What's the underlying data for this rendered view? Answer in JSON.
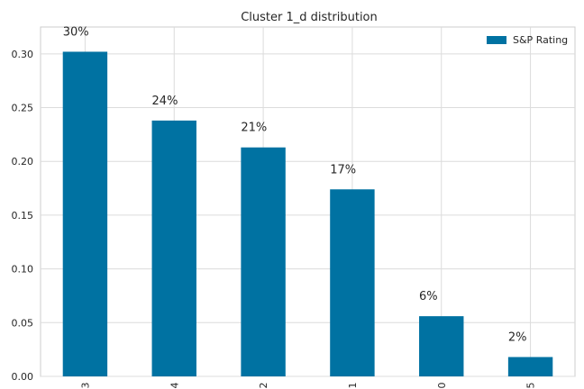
{
  "chart_data": {
    "type": "bar",
    "title": "Cluster 1_d distribution",
    "xlabel": "",
    "ylabel": "",
    "categories": [
      "3",
      "4",
      "2",
      "1",
      "0",
      "5"
    ],
    "series": [
      {
        "name": "S&P Rating",
        "values": [
          0.302,
          0.238,
          0.213,
          0.174,
          0.056,
          0.018
        ]
      }
    ],
    "data_labels": [
      "30%",
      "24%",
      "21%",
      "17%",
      "6%",
      "2%"
    ],
    "yticks": [
      "0.00",
      "0.05",
      "0.10",
      "0.15",
      "0.20",
      "0.25",
      "0.30"
    ],
    "ylim": [
      0,
      0.325
    ],
    "grid": true,
    "legend_position": "top-right",
    "bar_color": "#0072a2"
  }
}
